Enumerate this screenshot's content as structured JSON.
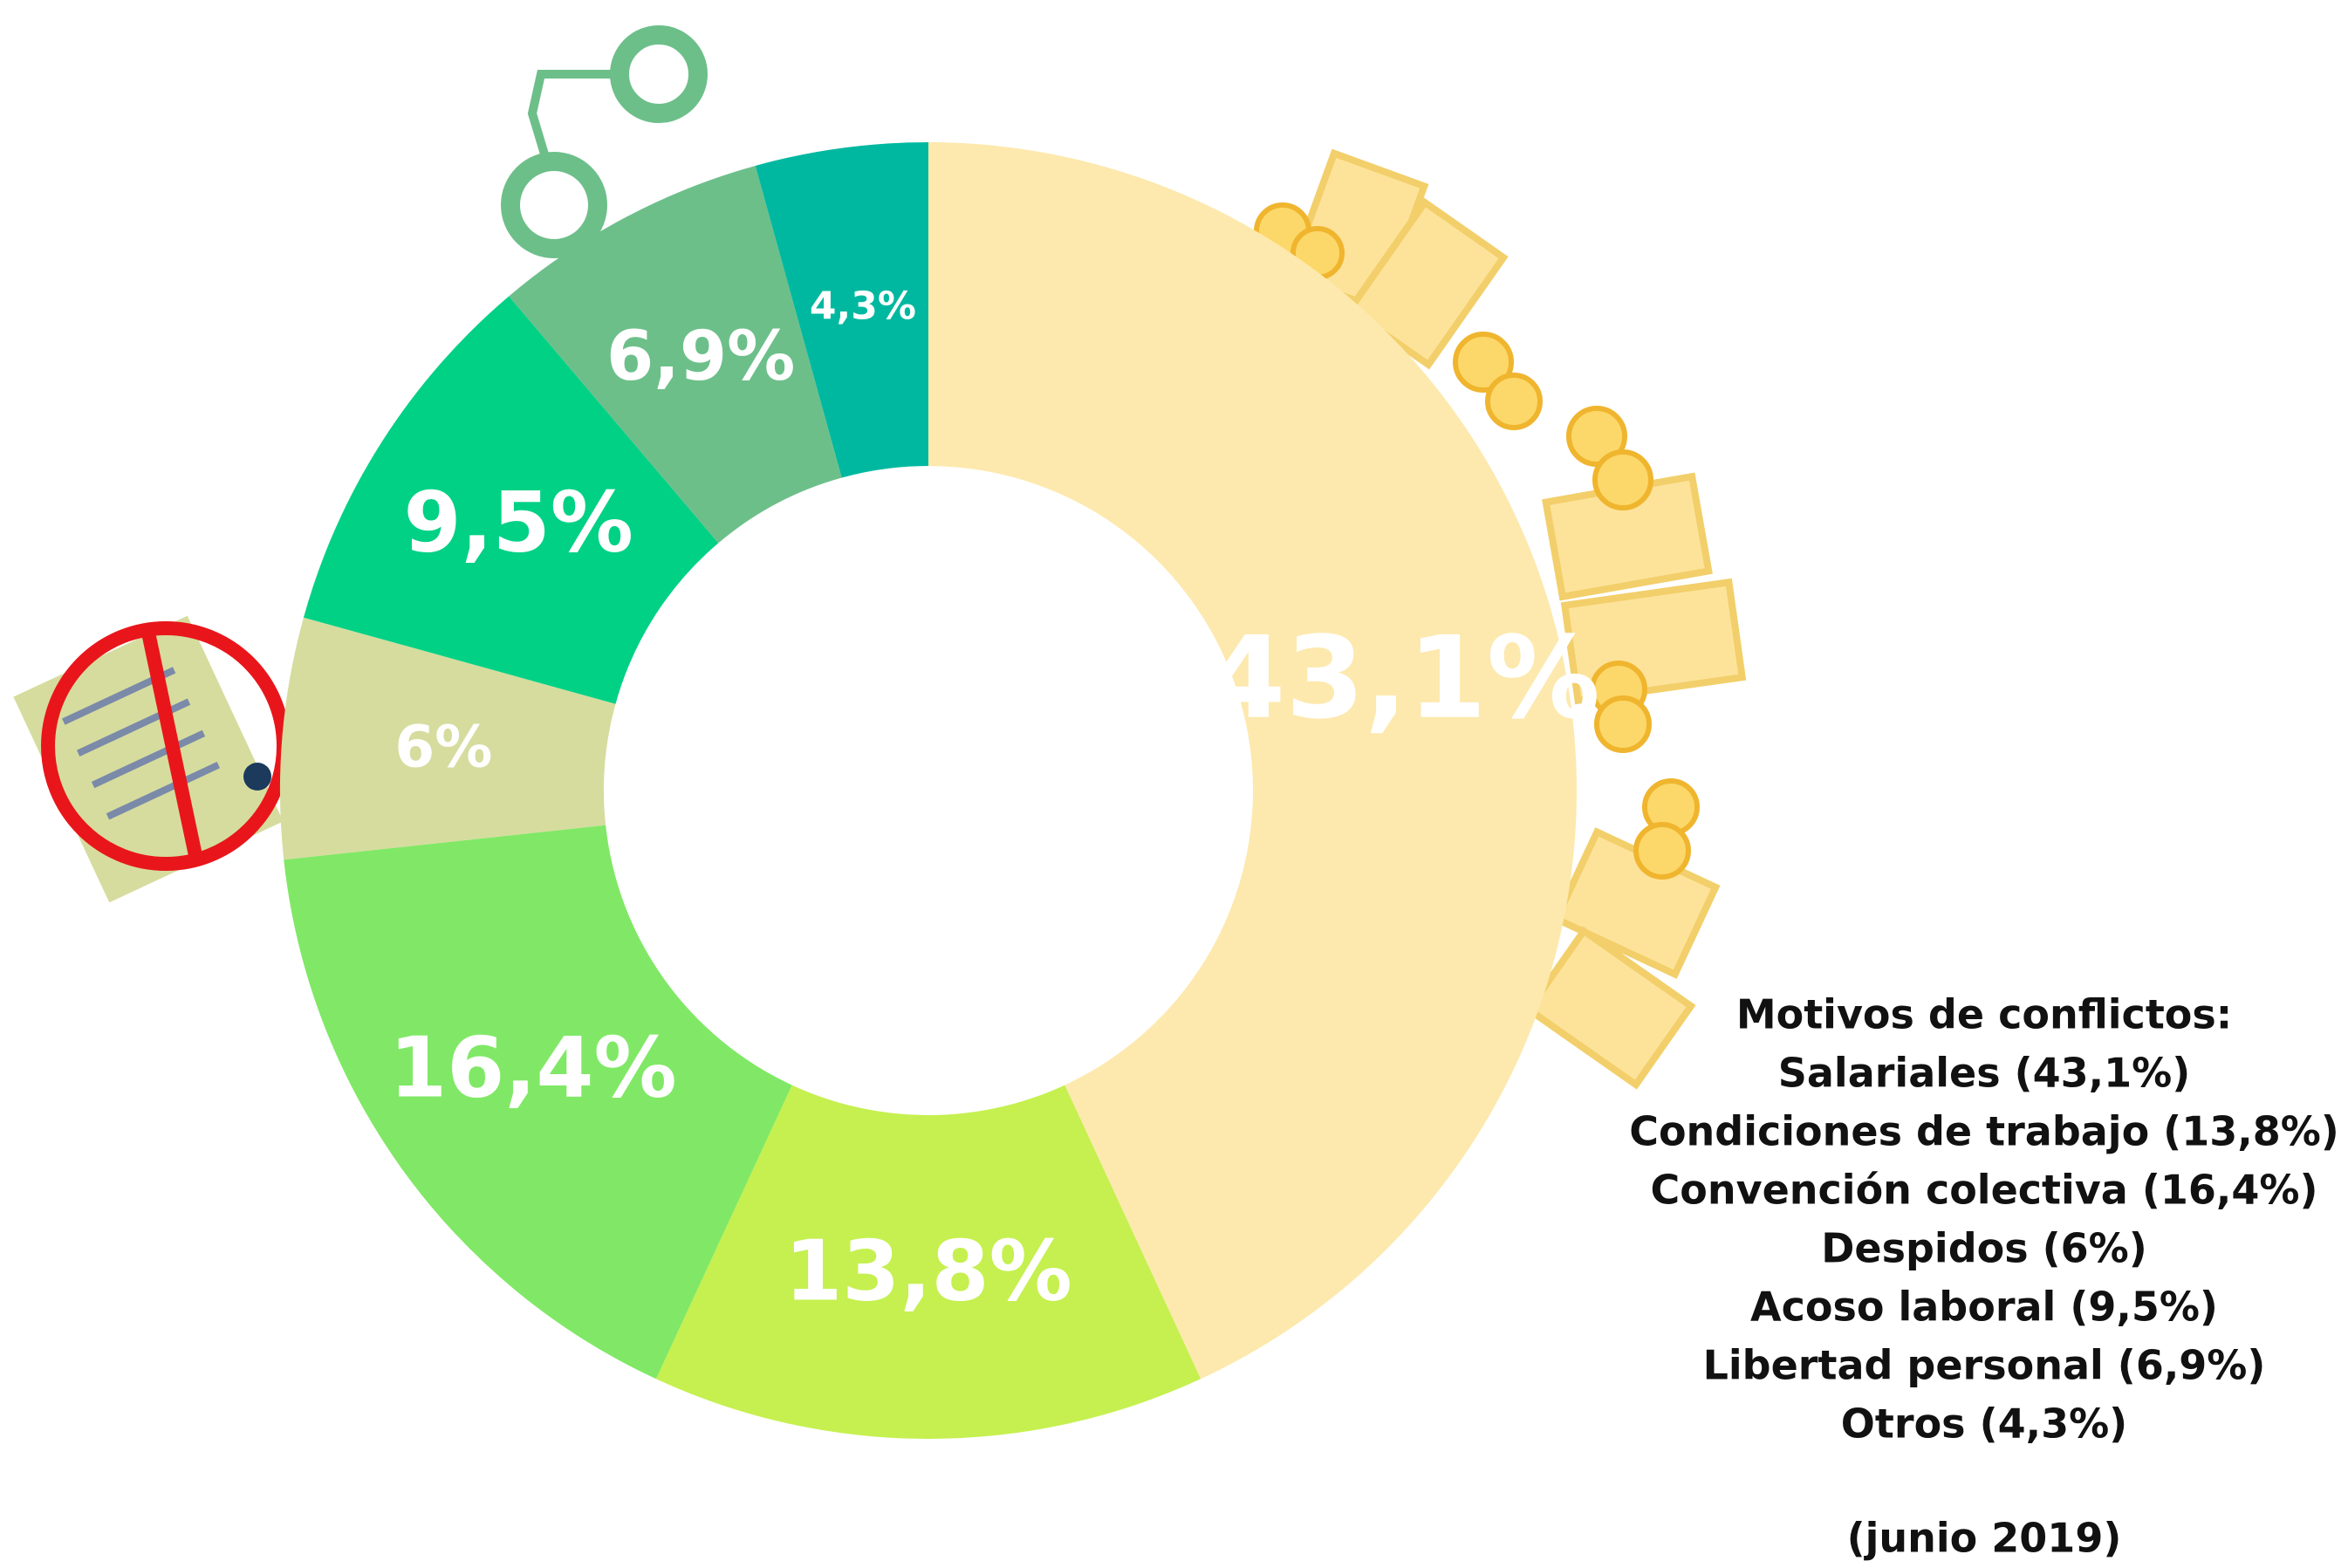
{
  "chart_data": {
    "type": "donut",
    "categories": [
      "Salariales (43,1%)",
      "Condiciones de trabajo (13,8%)",
      "Convención colectiva (16,4%)",
      "Despidos (6%)",
      "Acoso laboral (9,5%)",
      "Libertad personal (6,9%)",
      "Otros (4,3%)"
    ],
    "values": [
      43.1,
      13.8,
      16.4,
      6,
      9.5,
      6.9,
      4.3
    ],
    "value_labels": [
      "43,1%",
      "13,8%",
      "16,4%",
      "6%",
      "9,5%",
      "6,9%",
      "4,3%"
    ],
    "colors": [
      "#fde9ae",
      "#c5f04f",
      "#80e866",
      "#d6dc9e",
      "#00d185",
      "#6dbf8a",
      "#00b8a0"
    ],
    "legend_title": "Motivos de conflictos:",
    "note": "(junio 2019)"
  }
}
